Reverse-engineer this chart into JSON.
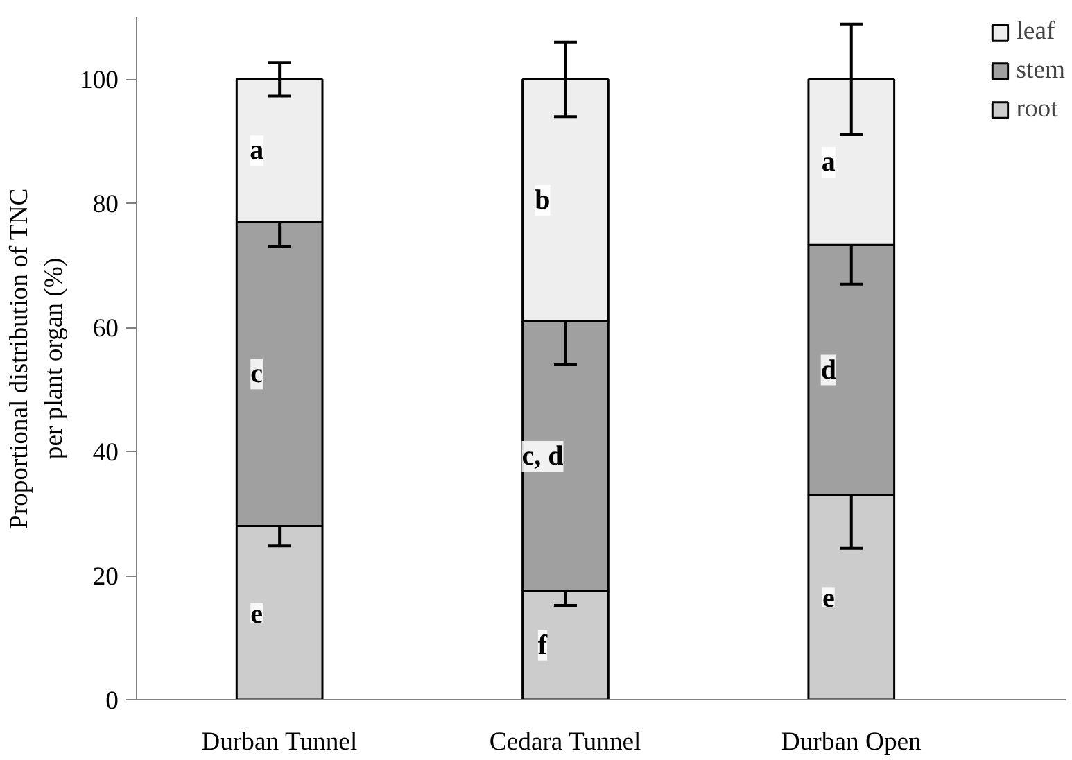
{
  "chart_data": {
    "type": "bar",
    "stacked": true,
    "ylabel": "Proportional distribution of TNC\nper plant organ (%)",
    "categories": [
      "Durban Tunnel",
      "Cedara Tunnel",
      "Durban Open"
    ],
    "series": [
      {
        "name": "root",
        "color": "#cccccc",
        "values": [
          28,
          17.5,
          33
        ],
        "errors": [
          3.2,
          2.3,
          8.6
        ]
      },
      {
        "name": "stem",
        "color": "#a0a0a0",
        "values": [
          49,
          43.5,
          40.3
        ],
        "errors": [
          4,
          7,
          6.3
        ]
      },
      {
        "name": "leaf",
        "color": "#eeeeee",
        "values": [
          23,
          39,
          26.7
        ],
        "errors": [
          2.7,
          6,
          8.9
        ]
      }
    ],
    "ylim": [
      0,
      110
    ],
    "yticks": [
      0,
      20,
      40,
      60,
      80,
      100
    ],
    "grid": false,
    "legend": "top right",
    "annotations": [
      "e",
      "c",
      "a",
      "f",
      "c, d",
      "b",
      "e",
      "d",
      "a"
    ]
  }
}
